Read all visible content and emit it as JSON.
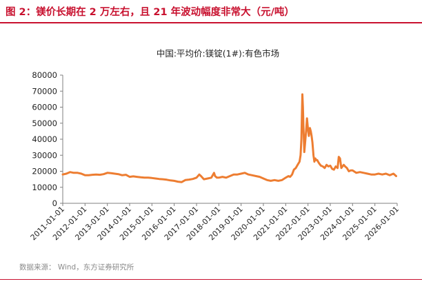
{
  "figure": {
    "title": "图 2：镁价长期在 2 万左右，且 21 年波动幅度非常大（元/吨）",
    "source": "数据来源： Wind，东方证券研究所"
  },
  "colors": {
    "accent": "#c8102e",
    "series": "#ed7d31"
  },
  "chart_data": {
    "type": "line",
    "title": "中国:平均价:镁锭(1#):有色市场",
    "xlabel": "",
    "ylabel": "",
    "ylim": [
      0,
      80000
    ],
    "yticks": [
      0,
      10000,
      20000,
      30000,
      40000,
      50000,
      60000,
      70000,
      80000
    ],
    "xlim": [
      "2011-01-01",
      "2026-01-01"
    ],
    "xticks": [
      "2011-01-01",
      "2012-01-01",
      "2013-01-01",
      "2014-01-01",
      "2015-01-01",
      "2016-01-01",
      "2017-01-01",
      "2018-01-01",
      "2019-01-01",
      "2020-01-01",
      "2021-01-01",
      "2022-01-01",
      "2023-01-01",
      "2024-01-01",
      "2025-01-01",
      "2026-01-01"
    ],
    "grid": false,
    "legend": "none",
    "series": [
      {
        "x": [
          "2011-01-01",
          "2011-03-01",
          "2011-05-01",
          "2011-07-01",
          "2011-09-01",
          "2011-11-01",
          "2012-01-01",
          "2012-03-01",
          "2012-05-01",
          "2012-07-01",
          "2012-09-01",
          "2012-11-01",
          "2013-01-01",
          "2013-03-01",
          "2013-05-01",
          "2013-07-01",
          "2013-09-01",
          "2013-11-01",
          "2014-01-01",
          "2014-03-01",
          "2014-05-01",
          "2014-07-01",
          "2014-09-01",
          "2014-11-01",
          "2015-01-01",
          "2015-03-01",
          "2015-05-01",
          "2015-07-01",
          "2015-09-01",
          "2015-11-01",
          "2016-01-01",
          "2016-03-01",
          "2016-05-01",
          "2016-07-01",
          "2016-09-01",
          "2016-11-01",
          "2017-01-01",
          "2017-02-15",
          "2017-03-15",
          "2017-05-01",
          "2017-07-01",
          "2017-09-01",
          "2017-10-15",
          "2017-11-01",
          "2017-12-01",
          "2018-01-01",
          "2018-03-01",
          "2018-05-01",
          "2018-07-01",
          "2018-09-01",
          "2018-11-01",
          "2019-01-01",
          "2019-03-01",
          "2019-05-01",
          "2019-07-01",
          "2019-09-01",
          "2019-11-01",
          "2020-01-01",
          "2020-03-01",
          "2020-05-01",
          "2020-07-01",
          "2020-09-01",
          "2020-11-01",
          "2021-01-01",
          "2021-02-15",
          "2021-03-15",
          "2021-04-15",
          "2021-05-15",
          "2021-06-15",
          "2021-07-15",
          "2021-08-15",
          "2021-09-01",
          "2021-09-15",
          "2021-09-25",
          "2021-10-01",
          "2021-10-10",
          "2021-10-20",
          "2021-11-01",
          "2021-11-15",
          "2021-12-01",
          "2021-12-15",
          "2022-01-01",
          "2022-01-15",
          "2022-02-01",
          "2022-02-15",
          "2022-03-01",
          "2022-03-15",
          "2022-04-01",
          "2022-04-15",
          "2022-05-01",
          "2022-05-15",
          "2022-06-01",
          "2022-06-15",
          "2022-07-01",
          "2022-08-01",
          "2022-09-01",
          "2022-10-01",
          "2022-11-01",
          "2022-12-01",
          "2023-01-01",
          "2023-02-01",
          "2023-03-01",
          "2023-04-01",
          "2023-05-01",
          "2023-05-20",
          "2023-06-10",
          "2023-07-01",
          "2023-07-20",
          "2023-08-10",
          "2023-09-01",
          "2023-10-01",
          "2023-11-01",
          "2023-12-01",
          "2024-01-01",
          "2024-03-01",
          "2024-05-01",
          "2024-07-01",
          "2024-09-01",
          "2024-11-01",
          "2025-01-01",
          "2025-03-01",
          "2025-05-01",
          "2025-07-01",
          "2025-09-01",
          "2025-11-01",
          "2025-12-15"
        ],
        "values": [
          18000,
          18500,
          19500,
          19000,
          19000,
          18500,
          17500,
          17500,
          17800,
          18000,
          17800,
          18200,
          19000,
          18800,
          18500,
          18200,
          17500,
          17800,
          16500,
          16800,
          16500,
          16200,
          16000,
          16000,
          15800,
          15500,
          15200,
          15000,
          14700,
          14300,
          14000,
          13500,
          13200,
          14500,
          14800,
          15200,
          16000,
          18000,
          17000,
          15000,
          15500,
          16000,
          19000,
          17000,
          16000,
          16000,
          16500,
          16000,
          17000,
          18000,
          18000,
          18500,
          19000,
          18000,
          17500,
          17000,
          16500,
          15500,
          14500,
          14000,
          14500,
          14000,
          14500,
          16000,
          17000,
          16500,
          18000,
          21000,
          22000,
          24000,
          26000,
          30000,
          40000,
          58000,
          68000,
          60000,
          46000,
          32000,
          38000,
          45000,
          53000,
          46000,
          42000,
          47000,
          45000,
          42000,
          38000,
          30000,
          26000,
          28000,
          27000,
          27000,
          26000,
          25000,
          23500,
          23000,
          22000,
          24000,
          23000,
          23500,
          21500,
          21000,
          23000,
          22000,
          29000,
          28000,
          22000,
          23000,
          24000,
          23000,
          22000,
          20000,
          20500,
          20500,
          19000,
          19500,
          19000,
          18500,
          18000,
          18000,
          18500,
          18000,
          18500,
          17500,
          18500,
          17000
        ]
      }
    ]
  }
}
